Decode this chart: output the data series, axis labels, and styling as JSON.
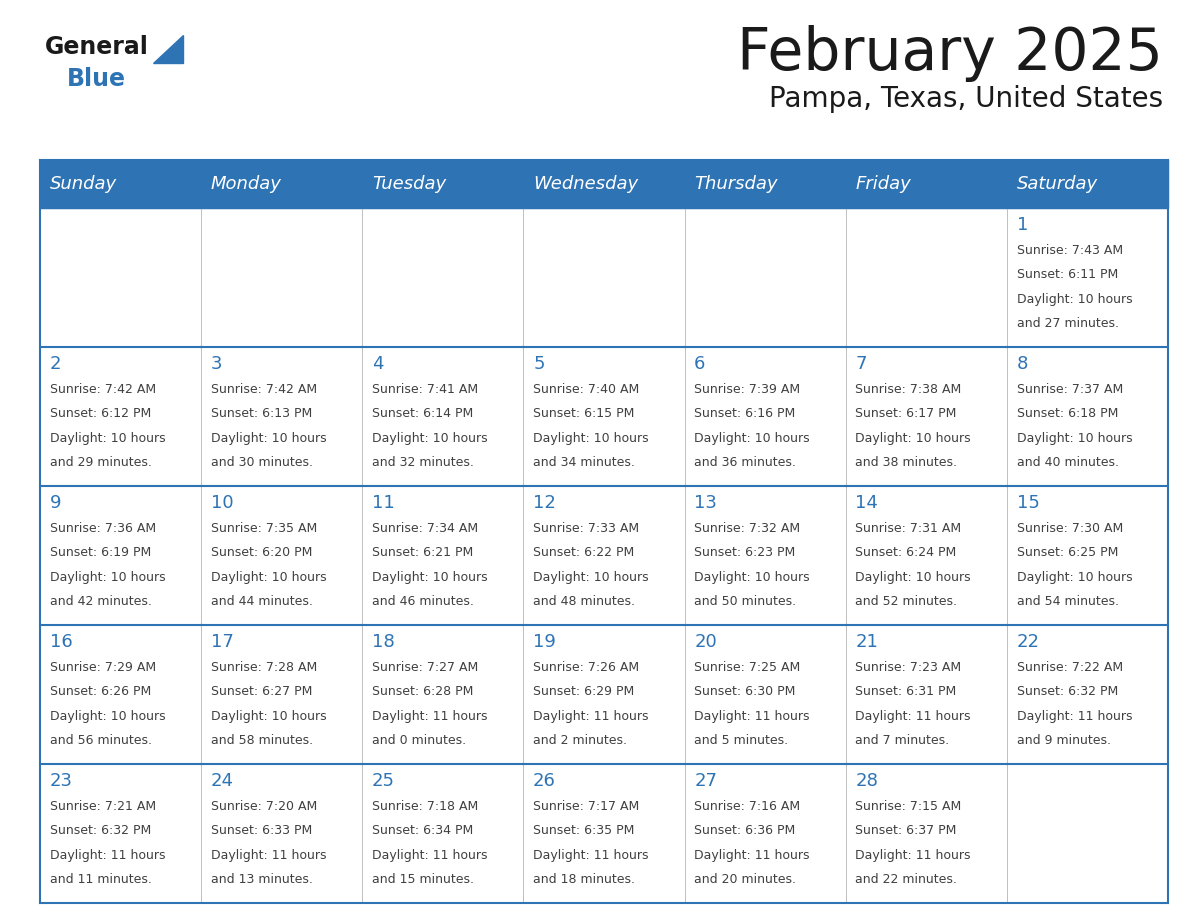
{
  "title": "February 2025",
  "subtitle": "Pampa, Texas, United States",
  "header_bg": "#2e74b5",
  "header_fg": "#ffffff",
  "border_color": "#2e74b5",
  "cell_bg": "#ffffff",
  "title_color": "#1a1a1a",
  "subtitle_color": "#1a1a1a",
  "day_num_color": "#2e74b5",
  "cell_text_color": "#404040",
  "day_names": [
    "Sunday",
    "Monday",
    "Tuesday",
    "Wednesday",
    "Thursday",
    "Friday",
    "Saturday"
  ],
  "weeks": [
    [
      null,
      null,
      null,
      null,
      null,
      null,
      {
        "day": "1",
        "sunrise": "7:43 AM",
        "sunset": "6:11 PM",
        "dl1": "10 hours",
        "dl2": "and 27 minutes."
      }
    ],
    [
      {
        "day": "2",
        "sunrise": "7:42 AM",
        "sunset": "6:12 PM",
        "dl1": "10 hours",
        "dl2": "and 29 minutes."
      },
      {
        "day": "3",
        "sunrise": "7:42 AM",
        "sunset": "6:13 PM",
        "dl1": "10 hours",
        "dl2": "and 30 minutes."
      },
      {
        "day": "4",
        "sunrise": "7:41 AM",
        "sunset": "6:14 PM",
        "dl1": "10 hours",
        "dl2": "and 32 minutes."
      },
      {
        "day": "5",
        "sunrise": "7:40 AM",
        "sunset": "6:15 PM",
        "dl1": "10 hours",
        "dl2": "and 34 minutes."
      },
      {
        "day": "6",
        "sunrise": "7:39 AM",
        "sunset": "6:16 PM",
        "dl1": "10 hours",
        "dl2": "and 36 minutes."
      },
      {
        "day": "7",
        "sunrise": "7:38 AM",
        "sunset": "6:17 PM",
        "dl1": "10 hours",
        "dl2": "and 38 minutes."
      },
      {
        "day": "8",
        "sunrise": "7:37 AM",
        "sunset": "6:18 PM",
        "dl1": "10 hours",
        "dl2": "and 40 minutes."
      }
    ],
    [
      {
        "day": "9",
        "sunrise": "7:36 AM",
        "sunset": "6:19 PM",
        "dl1": "10 hours",
        "dl2": "and 42 minutes."
      },
      {
        "day": "10",
        "sunrise": "7:35 AM",
        "sunset": "6:20 PM",
        "dl1": "10 hours",
        "dl2": "and 44 minutes."
      },
      {
        "day": "11",
        "sunrise": "7:34 AM",
        "sunset": "6:21 PM",
        "dl1": "10 hours",
        "dl2": "and 46 minutes."
      },
      {
        "day": "12",
        "sunrise": "7:33 AM",
        "sunset": "6:22 PM",
        "dl1": "10 hours",
        "dl2": "and 48 minutes."
      },
      {
        "day": "13",
        "sunrise": "7:32 AM",
        "sunset": "6:23 PM",
        "dl1": "10 hours",
        "dl2": "and 50 minutes."
      },
      {
        "day": "14",
        "sunrise": "7:31 AM",
        "sunset": "6:24 PM",
        "dl1": "10 hours",
        "dl2": "and 52 minutes."
      },
      {
        "day": "15",
        "sunrise": "7:30 AM",
        "sunset": "6:25 PM",
        "dl1": "10 hours",
        "dl2": "and 54 minutes."
      }
    ],
    [
      {
        "day": "16",
        "sunrise": "7:29 AM",
        "sunset": "6:26 PM",
        "dl1": "10 hours",
        "dl2": "and 56 minutes."
      },
      {
        "day": "17",
        "sunrise": "7:28 AM",
        "sunset": "6:27 PM",
        "dl1": "10 hours",
        "dl2": "and 58 minutes."
      },
      {
        "day": "18",
        "sunrise": "7:27 AM",
        "sunset": "6:28 PM",
        "dl1": "11 hours",
        "dl2": "and 0 minutes."
      },
      {
        "day": "19",
        "sunrise": "7:26 AM",
        "sunset": "6:29 PM",
        "dl1": "11 hours",
        "dl2": "and 2 minutes."
      },
      {
        "day": "20",
        "sunrise": "7:25 AM",
        "sunset": "6:30 PM",
        "dl1": "11 hours",
        "dl2": "and 5 minutes."
      },
      {
        "day": "21",
        "sunrise": "7:23 AM",
        "sunset": "6:31 PM",
        "dl1": "11 hours",
        "dl2": "and 7 minutes."
      },
      {
        "day": "22",
        "sunrise": "7:22 AM",
        "sunset": "6:32 PM",
        "dl1": "11 hours",
        "dl2": "and 9 minutes."
      }
    ],
    [
      {
        "day": "23",
        "sunrise": "7:21 AM",
        "sunset": "6:32 PM",
        "dl1": "11 hours",
        "dl2": "and 11 minutes."
      },
      {
        "day": "24",
        "sunrise": "7:20 AM",
        "sunset": "6:33 PM",
        "dl1": "11 hours",
        "dl2": "and 13 minutes."
      },
      {
        "day": "25",
        "sunrise": "7:18 AM",
        "sunset": "6:34 PM",
        "dl1": "11 hours",
        "dl2": "and 15 minutes."
      },
      {
        "day": "26",
        "sunrise": "7:17 AM",
        "sunset": "6:35 PM",
        "dl1": "11 hours",
        "dl2": "and 18 minutes."
      },
      {
        "day": "27",
        "sunrise": "7:16 AM",
        "sunset": "6:36 PM",
        "dl1": "11 hours",
        "dl2": "and 20 minutes."
      },
      {
        "day": "28",
        "sunrise": "7:15 AM",
        "sunset": "6:37 PM",
        "dl1": "11 hours",
        "dl2": "and 22 minutes."
      },
      null
    ]
  ]
}
